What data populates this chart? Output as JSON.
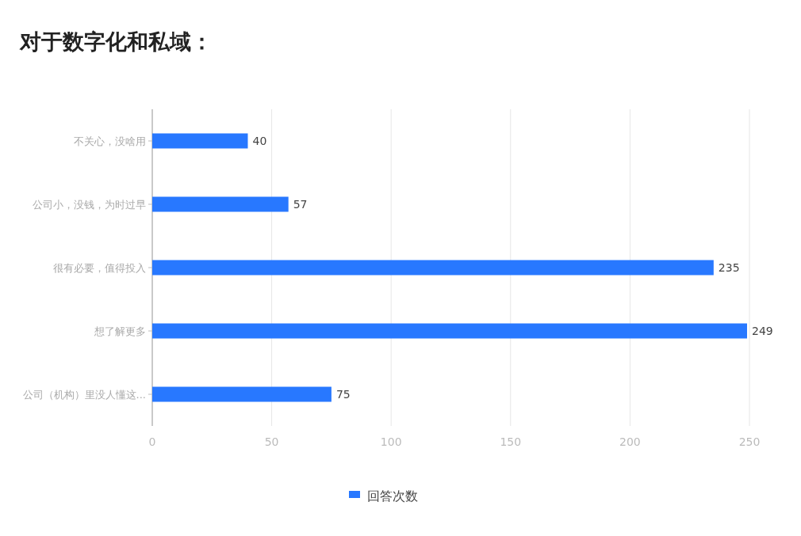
{
  "chart_data": {
    "type": "bar",
    "title": "对于数字化和私域：",
    "orientation": "horizontal",
    "categories": [
      "不关心，没啥用",
      "公司小，没钱，为时过早",
      "很有必要，值得投入",
      "想了解更多",
      "公司（机构）里没人懂这..."
    ],
    "series": [
      {
        "name": "回答次数",
        "color": "#2878ff",
        "values": [
          40,
          57,
          235,
          249,
          75
        ]
      }
    ],
    "xlim": [
      0,
      250
    ],
    "xticks": [
      0,
      50,
      100,
      150,
      200,
      250
    ],
    "grid": "x",
    "legend": "bottom",
    "data_labels": true
  }
}
